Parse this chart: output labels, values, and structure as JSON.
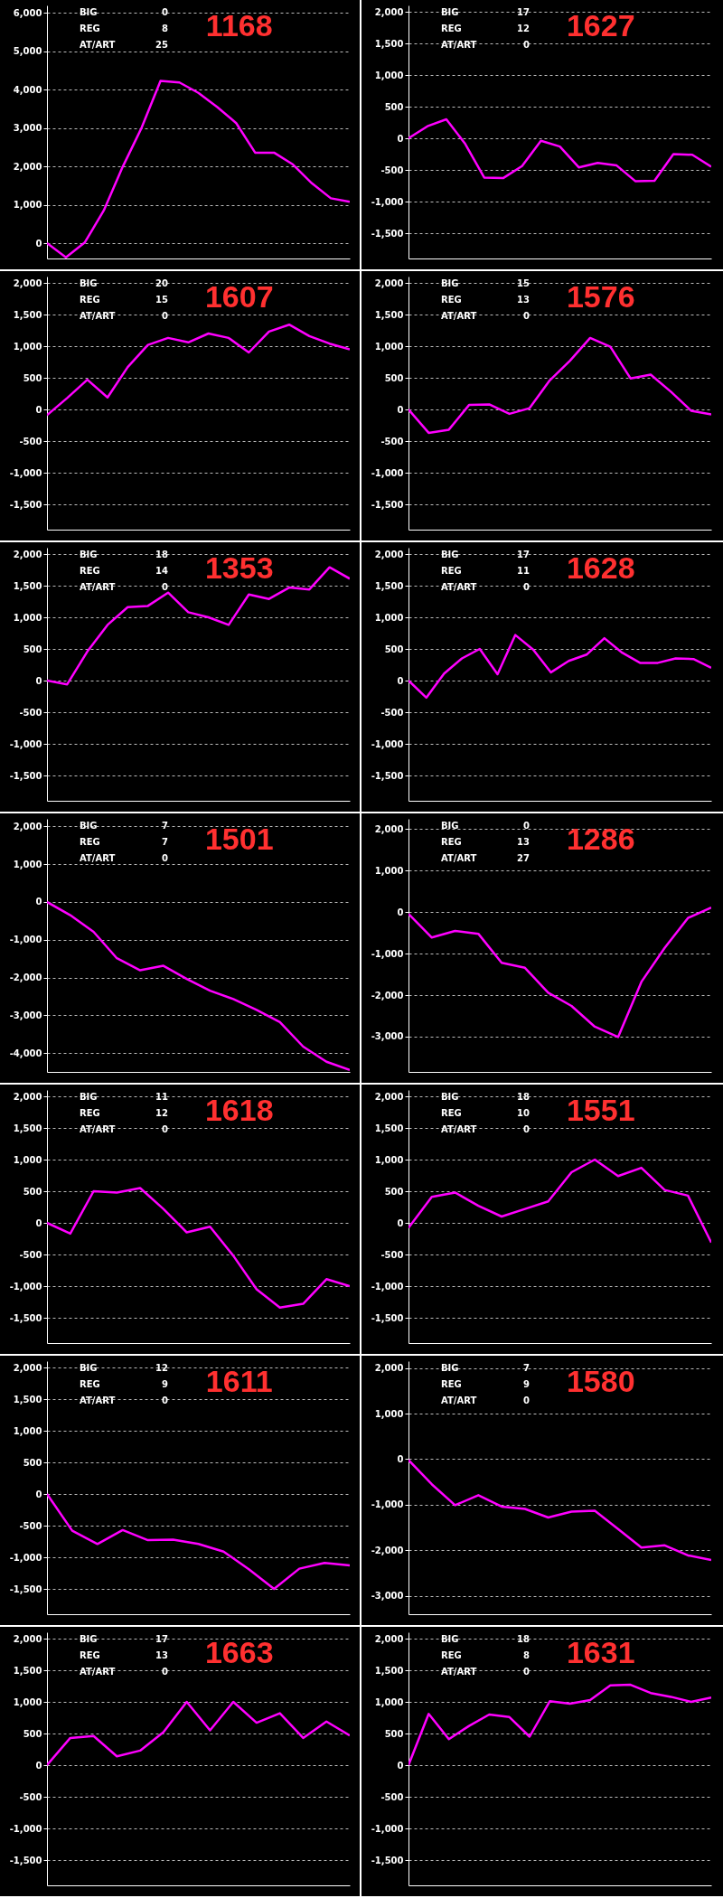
{
  "chart_data": [
    {
      "type": "line",
      "title": "1168",
      "annotations": [
        "BIG",
        "0",
        "REG",
        "8",
        "AT/ART",
        "25"
      ],
      "categories": [
        null,
        null,
        null,
        null,
        null,
        null,
        null,
        null,
        null,
        null,
        null,
        null,
        null,
        null,
        null,
        null,
        null
      ],
      "series": [
        {
          "color": "#ff00ff",
          "values": [
            0,
            -370,
            20,
            850,
            1990,
            3010,
            4230,
            4190,
            3920,
            3550,
            3130,
            2360,
            2360,
            2050,
            1560,
            1170,
            1080
          ]
        }
      ],
      "ylim": [
        -400,
        6200
      ],
      "yticks": [
        0,
        {
          "value": 1000,
          "label": "1,000"
        },
        {
          "value": 2000,
          "label": "2,000"
        },
        {
          "value": 3000,
          "label": "3,000"
        },
        {
          "value": 4000,
          "label": "4,000"
        },
        {
          "value": 5000,
          "label": "5,000"
        },
        {
          "value": 6000,
          "label": "6,000"
        }
      ],
      "grid": "y",
      "tick_labels": "y"
    },
    {
      "type": "line",
      "title": "1627",
      "annotations": [
        "BIG",
        "17",
        "REG",
        "12",
        "AT/ART",
        "0"
      ],
      "categories": [
        null,
        null,
        null,
        null,
        null,
        null,
        null,
        null,
        null,
        null,
        null,
        null,
        null,
        null,
        null,
        null,
        null
      ],
      "series": [
        {
          "color": "#ff00ff",
          "values": [
            0,
            190,
            300,
            -90,
            -620,
            -630,
            -440,
            -40,
            -130,
            -460,
            -390,
            -430,
            -680,
            -670,
            -250,
            -260,
            -450
          ]
        }
      ],
      "ylim": [
        -1900,
        2100
      ],
      "yticks": [
        {
          "value": -1500,
          "label": "-1,500"
        },
        {
          "value": -1000,
          "label": "-1,000"
        },
        -500,
        0,
        500,
        {
          "value": 1000,
          "label": "1,000"
        },
        {
          "value": 1500,
          "label": "1,500"
        },
        {
          "value": 2000,
          "label": "2,000"
        }
      ],
      "grid": "y",
      "tick_labels": "y"
    },
    {
      "type": "line",
      "title": "1607",
      "annotations": [
        "BIG",
        "20",
        "REG",
        "15",
        "AT/ART",
        "0"
      ],
      "categories": [
        null,
        null,
        null,
        null,
        null,
        null,
        null,
        null,
        null,
        null,
        null,
        null,
        null,
        null,
        null,
        null
      ],
      "series": [
        {
          "color": "#ff00ff",
          "values": [
            -90,
            180,
            470,
            190,
            670,
            1020,
            1130,
            1060,
            1200,
            1130,
            900,
            1230,
            1340,
            1160,
            1040,
            950
          ]
        }
      ],
      "ylim": [
        -1900,
        2100
      ],
      "yticks": [
        {
          "value": -1500,
          "label": "-1,500"
        },
        {
          "value": -1000,
          "label": "-1,000"
        },
        -500,
        0,
        500,
        {
          "value": 1000,
          "label": "1,000"
        },
        {
          "value": 1500,
          "label": "1,500"
        },
        {
          "value": 2000,
          "label": "2,000"
        }
      ],
      "grid": "y",
      "tick_labels": "y"
    },
    {
      "type": "line",
      "title": "1576",
      "annotations": [
        "BIG",
        "15",
        "REG",
        "13",
        "AT/ART",
        "0"
      ],
      "categories": [
        null,
        null,
        null,
        null,
        null,
        null,
        null,
        null,
        null,
        null,
        null,
        null,
        null,
        null,
        null,
        null
      ],
      "series": [
        {
          "color": "#ff00ff",
          "values": [
            0,
            -370,
            -320,
            70,
            80,
            -70,
            20,
            460,
            770,
            1130,
            990,
            490,
            550,
            280,
            -20,
            -80
          ]
        }
      ],
      "ylim": [
        -1900,
        2100
      ],
      "yticks": [
        {
          "value": -1500,
          "label": "-1,500"
        },
        {
          "value": -1000,
          "label": "-1,000"
        },
        -500,
        0,
        500,
        {
          "value": 1000,
          "label": "1,000"
        },
        {
          "value": 1500,
          "label": "1,500"
        },
        {
          "value": 2000,
          "label": "2,000"
        }
      ],
      "grid": "y",
      "tick_labels": "y"
    },
    {
      "type": "line",
      "title": "1353",
      "annotations": [
        "BIG",
        "18",
        "REG",
        "14",
        "AT/ART",
        "0"
      ],
      "categories": [
        null,
        null,
        null,
        null,
        null,
        null,
        null,
        null,
        null,
        null,
        null,
        null,
        null,
        null,
        null,
        null
      ],
      "series": [
        {
          "color": "#ff00ff",
          "values": [
            0,
            -60,
            460,
            880,
            1160,
            1180,
            1390,
            1080,
            1000,
            880,
            1360,
            1290,
            1470,
            1440,
            1790,
            1610
          ]
        }
      ],
      "ylim": [
        -1900,
        2100
      ],
      "yticks": [
        {
          "value": -1500,
          "label": "-1,500"
        },
        {
          "value": -1000,
          "label": "-1,000"
        },
        -500,
        0,
        500,
        {
          "value": 1000,
          "label": "1,000"
        },
        {
          "value": 1500,
          "label": "1,500"
        },
        {
          "value": 2000,
          "label": "2,000"
        }
      ],
      "grid": "y",
      "tick_labels": "y"
    },
    {
      "type": "line",
      "title": "1628",
      "annotations": [
        "BIG",
        "17",
        "REG",
        "11",
        "AT/ART",
        "0"
      ],
      "categories": [
        null,
        null,
        null,
        null,
        null,
        null,
        null,
        null,
        null,
        null,
        null,
        null,
        null,
        null,
        null,
        null,
        null,
        null
      ],
      "series": [
        {
          "color": "#ff00ff",
          "values": [
            0,
            -270,
            110,
            350,
            500,
            100,
            720,
            490,
            130,
            310,
            410,
            670,
            440,
            280,
            280,
            350,
            340,
            200
          ]
        }
      ],
      "ylim": [
        -1900,
        2100
      ],
      "yticks": [
        {
          "value": -1500,
          "label": "-1,500"
        },
        {
          "value": -1000,
          "label": "-1,000"
        },
        -500,
        0,
        500,
        {
          "value": 1000,
          "label": "1,000"
        },
        {
          "value": 1500,
          "label": "1,500"
        },
        {
          "value": 2000,
          "label": "2,000"
        }
      ],
      "grid": "y",
      "tick_labels": "y"
    },
    {
      "type": "line",
      "title": "1501",
      "annotations": [
        "BIG",
        "7",
        "REG",
        "7",
        "AT/ART",
        "0"
      ],
      "categories": [
        null,
        null,
        null,
        null,
        null,
        null,
        null,
        null,
        null,
        null,
        null,
        null,
        null,
        null
      ],
      "series": [
        {
          "color": "#ff00ff",
          "values": [
            0,
            -350,
            -790,
            -1490,
            -1810,
            -1690,
            -2040,
            -2350,
            -2570,
            -2860,
            -3180,
            -3830,
            -4230,
            -4450
          ]
        }
      ],
      "ylim": [
        -4500,
        2200
      ],
      "yticks": [
        {
          "value": -4000,
          "label": "-4,000"
        },
        {
          "value": -3000,
          "label": "-3,000"
        },
        {
          "value": -2000,
          "label": "-2,000"
        },
        {
          "value": -1000,
          "label": "-1,000"
        },
        0,
        {
          "value": 1000,
          "label": "1,000"
        },
        {
          "value": 2000,
          "label": "2,000"
        }
      ],
      "grid": "y",
      "tick_labels": "y"
    },
    {
      "type": "line",
      "title": "1286",
      "annotations": [
        "BIG",
        "0",
        "REG",
        "13",
        "AT/ART",
        "27"
      ],
      "categories": [
        null,
        null,
        null,
        null,
        null,
        null,
        null,
        null,
        null,
        null,
        null,
        null,
        null,
        null
      ],
      "series": [
        {
          "color": "#ff00ff",
          "values": [
            -40,
            -610,
            -450,
            -520,
            -1220,
            -1340,
            -1940,
            -2260,
            -2760,
            -3010,
            -1680,
            -860,
            -140,
            110
          ]
        }
      ],
      "ylim": [
        -3850,
        2250
      ],
      "yticks": [
        {
          "value": -3000,
          "label": "-3,000"
        },
        {
          "value": -2000,
          "label": "-2,000"
        },
        {
          "value": -1000,
          "label": "-1,000"
        },
        0,
        {
          "value": 1000,
          "label": "1,000"
        },
        {
          "value": 2000,
          "label": "2,000"
        }
      ],
      "grid": "y",
      "tick_labels": "y"
    },
    {
      "type": "line",
      "title": "1618",
      "annotations": [
        "BIG",
        "11",
        "REG",
        "12",
        "AT/ART",
        "0"
      ],
      "categories": [
        null,
        null,
        null,
        null,
        null,
        null,
        null,
        null,
        null,
        null,
        null,
        null,
        null,
        null
      ],
      "series": [
        {
          "color": "#ff00ff",
          "values": [
            0,
            -170,
            500,
            480,
            550,
            220,
            -150,
            -60,
            -520,
            -1050,
            -1340,
            -1280,
            -890,
            -1000
          ]
        }
      ],
      "ylim": [
        -1900,
        2100
      ],
      "yticks": [
        {
          "value": -1500,
          "label": "-1,500"
        },
        {
          "value": -1000,
          "label": "-1,000"
        },
        -500,
        0,
        500,
        {
          "value": 1000,
          "label": "1,000"
        },
        {
          "value": 1500,
          "label": "1,500"
        },
        {
          "value": 2000,
          "label": "2,000"
        }
      ],
      "grid": "y",
      "tick_labels": "y"
    },
    {
      "type": "line",
      "title": "1551",
      "annotations": [
        "BIG",
        "18",
        "REG",
        "10",
        "AT/ART",
        "0"
      ],
      "categories": [
        null,
        null,
        null,
        null,
        null,
        null,
        null,
        null,
        null,
        null,
        null,
        null,
        null,
        null
      ],
      "series": [
        {
          "color": "#ff00ff",
          "values": [
            -80,
            410,
            480,
            270,
            100,
            220,
            340,
            800,
            1000,
            740,
            870,
            520,
            430,
            -310
          ]
        }
      ],
      "ylim": [
        -1900,
        2100
      ],
      "yticks": [
        {
          "value": -1500,
          "label": "-1,500"
        },
        {
          "value": -1000,
          "label": "-1,000"
        },
        -500,
        0,
        500,
        {
          "value": 1000,
          "label": "1,000"
        },
        {
          "value": 1500,
          "label": "1,500"
        },
        {
          "value": 2000,
          "label": "2,000"
        }
      ],
      "grid": "y",
      "tick_labels": "y"
    },
    {
      "type": "line",
      "title": "1611",
      "annotations": [
        "BIG",
        "12",
        "REG",
        "9",
        "AT/ART",
        "0"
      ],
      "categories": [
        null,
        null,
        null,
        null,
        null,
        null,
        null,
        null,
        null,
        null,
        null,
        null,
        null
      ],
      "series": [
        {
          "color": "#ff00ff",
          "values": [
            0,
            -580,
            -790,
            -570,
            -730,
            -720,
            -790,
            -910,
            -1190,
            -1500,
            -1180,
            -1090,
            -1130
          ]
        }
      ],
      "ylim": [
        -1900,
        2100
      ],
      "yticks": [
        {
          "value": -1500,
          "label": "-1,500"
        },
        {
          "value": -1000,
          "label": "-1,000"
        },
        -500,
        0,
        500,
        {
          "value": 1000,
          "label": "1,000"
        },
        {
          "value": 1500,
          "label": "1,500"
        },
        {
          "value": 2000,
          "label": "2,000"
        }
      ],
      "grid": "y",
      "tick_labels": "y"
    },
    {
      "type": "line",
      "title": "1580",
      "annotations": [
        "BIG",
        "7",
        "REG",
        "9",
        "AT/ART",
        "0"
      ],
      "categories": [
        null,
        null,
        null,
        null,
        null,
        null,
        null,
        null,
        null,
        null,
        null,
        null,
        null,
        null
      ],
      "series": [
        {
          "color": "#ff00ff",
          "values": [
            -20,
            -550,
            -1010,
            -790,
            -1040,
            -1090,
            -1280,
            -1150,
            -1130,
            -1530,
            -1940,
            -1890,
            -2110,
            -2210
          ]
        }
      ],
      "ylim": [
        -3400,
        2150
      ],
      "yticks": [
        {
          "value": -3000,
          "label": "-3,000"
        },
        {
          "value": -2000,
          "label": "-2,000"
        },
        {
          "value": -1000,
          "label": "-1,000"
        },
        0,
        {
          "value": 1000,
          "label": "1,000"
        },
        {
          "value": 2000,
          "label": "2,000"
        }
      ],
      "grid": "y",
      "tick_labels": "y"
    },
    {
      "type": "line",
      "title": "1663",
      "annotations": [
        "BIG",
        "17",
        "REG",
        "13",
        "AT/ART",
        "0"
      ],
      "categories": [
        null,
        null,
        null,
        null,
        null,
        null,
        null,
        null,
        null,
        null,
        null,
        null,
        null,
        null
      ],
      "series": [
        {
          "color": "#ff00ff",
          "values": [
            0,
            430,
            460,
            140,
            230,
            520,
            1000,
            550,
            1000,
            670,
            820,
            430,
            690,
            470
          ]
        }
      ],
      "ylim": [
        -1900,
        2100
      ],
      "yticks": [
        {
          "value": -1500,
          "label": "-1,500"
        },
        {
          "value": -1000,
          "label": "-1,000"
        },
        -500,
        0,
        500,
        {
          "value": 1000,
          "label": "1,000"
        },
        {
          "value": 1500,
          "label": "1,500"
        },
        {
          "value": 2000,
          "label": "2,000"
        }
      ],
      "grid": "y",
      "tick_labels": "y"
    },
    {
      "type": "line",
      "title": "1631",
      "annotations": [
        "BIG",
        "18",
        "REG",
        "8",
        "AT/ART",
        "0"
      ],
      "categories": [
        null,
        null,
        null,
        null,
        null,
        null,
        null,
        null,
        null,
        null,
        null,
        null,
        null,
        null,
        null,
        null
      ],
      "series": [
        {
          "color": "#ff00ff",
          "values": [
            0,
            810,
            410,
            620,
            800,
            760,
            450,
            1010,
            970,
            1030,
            1260,
            1270,
            1140,
            1080,
            1000,
            1070
          ]
        }
      ],
      "ylim": [
        -1900,
        2100
      ],
      "yticks": [
        {
          "value": -1500,
          "label": "-1,500"
        },
        {
          "value": -1000,
          "label": "-1,000"
        },
        -500,
        0,
        500,
        {
          "value": 1000,
          "label": "1,000"
        },
        {
          "value": 1500,
          "label": "1,500"
        },
        {
          "value": 2000,
          "label": "2,000"
        }
      ],
      "grid": "y",
      "tick_labels": "y"
    }
  ]
}
